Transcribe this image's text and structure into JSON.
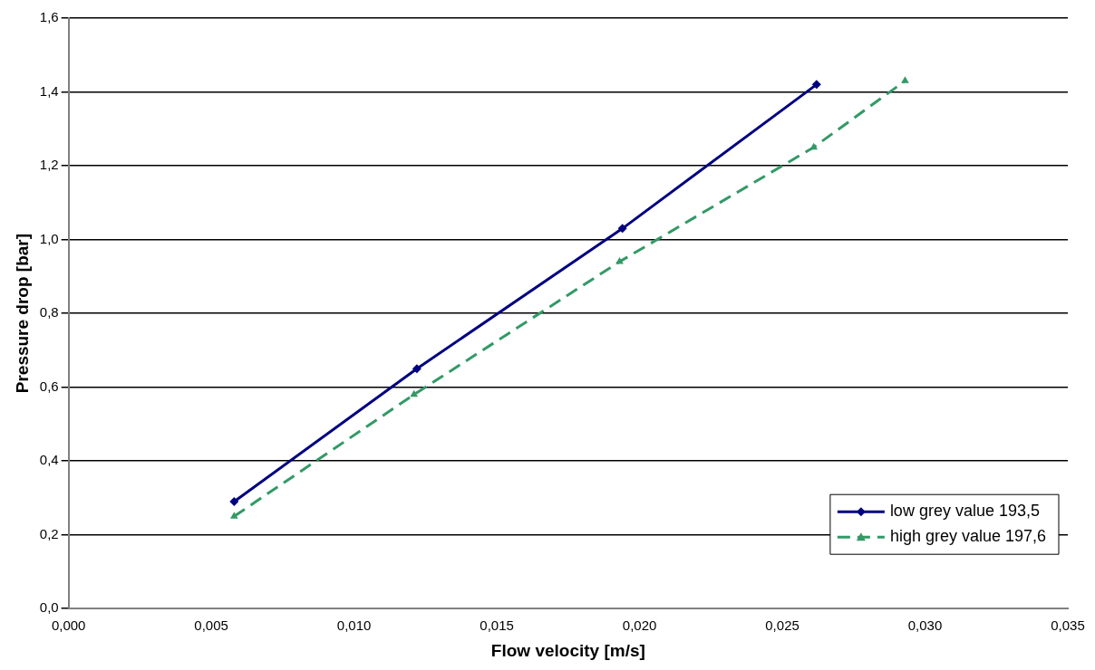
{
  "chart_data": {
    "type": "line",
    "xlabel": "Flow velocity [m/s]",
    "ylabel": "Pressure drop [bar]",
    "xlim": [
      0,
      0.035
    ],
    "ylim": [
      0,
      1.6
    ],
    "xticks": [
      {
        "value": 0,
        "label": "0,000"
      },
      {
        "value": 0.005,
        "label": "0,005"
      },
      {
        "value": 0.01,
        "label": "0,010"
      },
      {
        "value": 0.015,
        "label": "0,015"
      },
      {
        "value": 0.02,
        "label": "0,020"
      },
      {
        "value": 0.025,
        "label": "0,025"
      },
      {
        "value": 0.03,
        "label": "0,030"
      },
      {
        "value": 0.035,
        "label": "0,035"
      }
    ],
    "yticks": [
      {
        "value": 0,
        "label": "0,0"
      },
      {
        "value": 0.2,
        "label": "0,2"
      },
      {
        "value": 0.4,
        "label": "0,4"
      },
      {
        "value": 0.6,
        "label": "0,6"
      },
      {
        "value": 0.8,
        "label": "0,8"
      },
      {
        "value": 1.0,
        "label": "1,0"
      },
      {
        "value": 1.2,
        "label": "1,2"
      },
      {
        "value": 1.4,
        "label": "1,4"
      },
      {
        "value": 1.6,
        "label": "1,6"
      }
    ],
    "grid": "y",
    "legend": "bottom right",
    "series": [
      {
        "name": "low grey value 193,5",
        "color": "#000080",
        "marker": "diamond",
        "line_style": "solid",
        "x": [
          0.0058,
          0.0122,
          0.0194,
          0.0262
        ],
        "values": [
          0.29,
          0.65,
          1.03,
          1.42
        ]
      },
      {
        "name": "high grey value 197,6",
        "color": "#339966",
        "marker": "triangle",
        "line_style": "dashed",
        "x": [
          0.0058,
          0.0121,
          0.0193,
          0.0261,
          0.0293
        ],
        "values": [
          0.25,
          0.58,
          0.94,
          1.25,
          1.43
        ]
      }
    ]
  }
}
